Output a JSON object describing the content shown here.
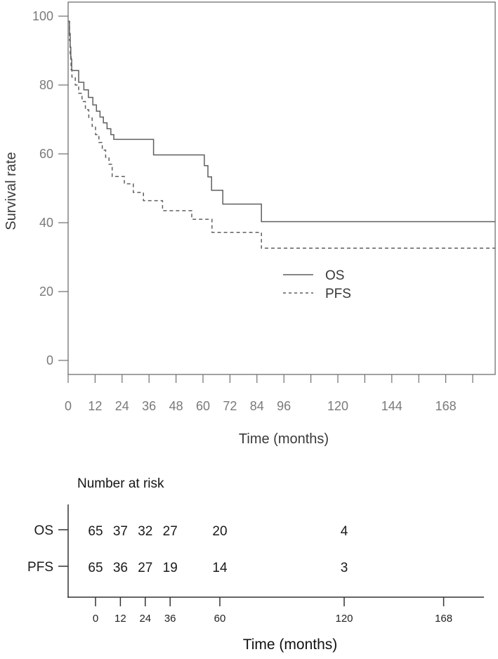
{
  "figure": {
    "background": "#ffffff"
  },
  "colors": {
    "curve": "#5f5f5f",
    "frame": "#6f6f6f",
    "tick_label": "#7a7a7a",
    "axis_title": "#3a3a3a",
    "risk_text": "#1a1a1a",
    "risk_line": "#333333"
  },
  "chart_data": [
    {
      "type": "line",
      "subtype": "kaplan-meier-step",
      "title": "",
      "ylabel": "Survival rate",
      "xlabel": "Time (months)",
      "xlim": [
        0,
        190
      ],
      "ylim": [
        0,
        100
      ],
      "grid": false,
      "y_ticks": [
        0,
        20,
        40,
        60,
        80,
        100
      ],
      "x_ticks": [
        0,
        12,
        24,
        36,
        48,
        60,
        72,
        84,
        96,
        108,
        120,
        132,
        144,
        156,
        168,
        180
      ],
      "x_tick_labels": [
        0,
        12,
        24,
        36,
        48,
        60,
        72,
        84,
        96,
        120,
        144,
        168
      ],
      "legend_position": "inside-lower-center",
      "series": [
        {
          "name": "OS",
          "line_style": "solid",
          "steps": [
            [
              0,
              98.5
            ],
            [
              0.6,
              95
            ],
            [
              0.9,
              91
            ],
            [
              1.2,
              87.5
            ],
            [
              1.6,
              84.2
            ],
            [
              4.7,
              80.8
            ],
            [
              7,
              78.6
            ],
            [
              9,
              76.4
            ],
            [
              11,
              74.2
            ],
            [
              12.6,
              72.4
            ],
            [
              14.2,
              70.7
            ],
            [
              15.7,
              69
            ],
            [
              17.3,
              67.3
            ],
            [
              19,
              65.6
            ],
            [
              20.3,
              64.2
            ],
            [
              38,
              59.7
            ],
            [
              60.6,
              56.6
            ],
            [
              62.2,
              53.3
            ],
            [
              63.8,
              49.4
            ],
            [
              68.8,
              45.4
            ],
            [
              86,
              40.3
            ],
            [
              190,
              40.3
            ]
          ]
        },
        {
          "name": "PFS",
          "line_style": "dashed",
          "steps": [
            [
              0,
              98.5
            ],
            [
              0.6,
              93
            ],
            [
              0.9,
              88.5
            ],
            [
              1.3,
              84.5
            ],
            [
              1.7,
              82.3
            ],
            [
              3.2,
              80
            ],
            [
              4.7,
              77.6
            ],
            [
              6.2,
              75.2
            ],
            [
              7.7,
              72.8
            ],
            [
              9.2,
              70.4
            ],
            [
              10.7,
              68
            ],
            [
              12.2,
              65.6
            ],
            [
              13.7,
              63.3
            ],
            [
              15.2,
              61.1
            ],
            [
              16.7,
              59
            ],
            [
              18.2,
              57
            ],
            [
              19.6,
              53.4
            ],
            [
              25,
              51.3
            ],
            [
              29,
              48.8
            ],
            [
              33.5,
              46.4
            ],
            [
              42,
              43.5
            ],
            [
              55,
              41
            ],
            [
              64,
              37.2
            ],
            [
              86,
              32.6
            ],
            [
              190,
              32.6
            ]
          ]
        }
      ]
    },
    {
      "type": "table",
      "title": "Number at risk",
      "xlabel": "Time (months)",
      "value_times": [
        0,
        12,
        24,
        36,
        60,
        120
      ],
      "axis_ticks": [
        0,
        12,
        24,
        36,
        60,
        120,
        168
      ],
      "rows": [
        {
          "label": "OS",
          "values": [
            65,
            37,
            32,
            27,
            20,
            4
          ]
        },
        {
          "label": "PFS",
          "values": [
            65,
            36,
            27,
            19,
            14,
            3
          ]
        }
      ]
    }
  ]
}
